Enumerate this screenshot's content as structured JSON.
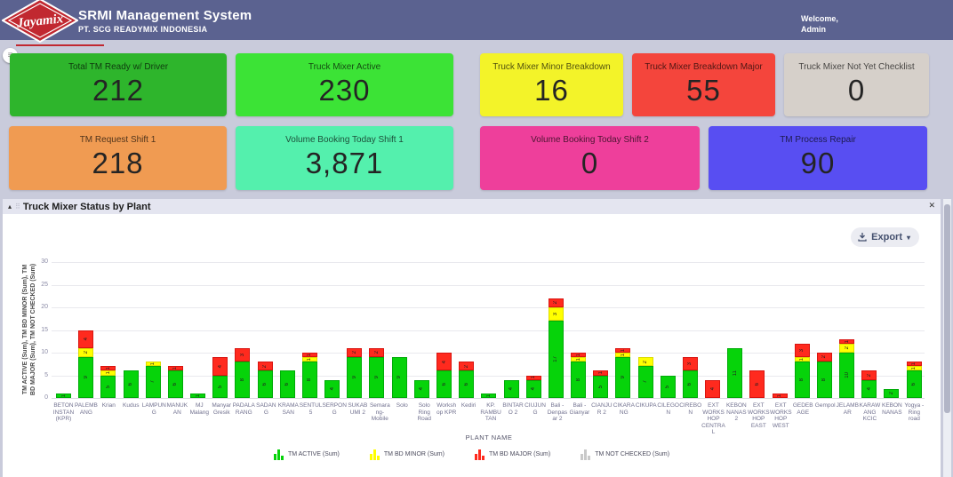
{
  "header": {
    "title": "SRMI Management System",
    "subtitle": "PT. SCG READYMIX INDONESIA",
    "logo_text": "Jayamix",
    "welcome_line1": "Welcome,",
    "welcome_line2": "Admin"
  },
  "icons": {
    "hamburger": "≡",
    "collapse_arrow": "▴",
    "drag_handle": "⠿",
    "close": "✕",
    "export_caret": "▾"
  },
  "cards": {
    "row1": [
      {
        "label": "Total TM Ready w/ Driver",
        "value": "212",
        "bg": "#2eb52c"
      },
      {
        "label": "Truck Mixer Active",
        "value": "230",
        "bg": "#3ce336"
      },
      {
        "label": "Truck Mixer Minor Breakdown",
        "value": "16",
        "bg": "#f3f329"
      },
      {
        "label": "Truck Mixer Breakdown Major",
        "value": "55",
        "bg": "#f4453c"
      },
      {
        "label": "Truck Mixer Not Yet Checklist",
        "value": "0",
        "bg": "#d6d0ca"
      }
    ],
    "row2": [
      {
        "label": "TM Request Shift 1",
        "value": "218",
        "bg": "#f09b52"
      },
      {
        "label": "Volume Booking Today Shift 1",
        "value": "3,871",
        "bg": "#54f0ad"
      },
      {
        "label": "Volume Booking Today Shift 2",
        "value": "0",
        "bg": "#ee3f9b"
      },
      {
        "label": "TM Process Repair",
        "value": "90",
        "bg": "#584ef2"
      }
    ]
  },
  "panel": {
    "title": "Truck Mixer Status by Plant",
    "export_label": "Export"
  },
  "chart_data": {
    "type": "bar",
    "stacked": true,
    "title": "Truck Mixer Status by Plant",
    "xlabel": "PLANT NAME",
    "ylabel": "TM ACTIVE (Sum), TM BD MINOR (Sum), TM\nBD MAJOR (Sum), TM NOT CHECKED (Sum)",
    "ylim": [
      0,
      30
    ],
    "yticks": [
      0,
      5,
      10,
      15,
      20,
      25,
      30
    ],
    "grid": true,
    "legend_position": "bottom",
    "categories": [
      "BETON INSTAN (KPR)",
      "PALEMBANG",
      "Krian",
      "Kudus",
      "LAMPUNG",
      "MANUKAN",
      "MJ Malang",
      "Manyar Gresik",
      "PADALARANG",
      "SADANG",
      "KRAMASAN",
      "SENTUL 5",
      "SERPONG",
      "SUKABUMI 2",
      "Semarang-Mobile",
      "Solo",
      "Solo Ring Road",
      "Workshop KPR",
      "Kediri",
      "KP. RAMBUTAN",
      "BINTARO 2",
      "CIUJUNG",
      "Bali - Denpasar 2",
      "Bali - Gianyar",
      "CIANJUR 2",
      "CIKARANG",
      "CIKUPA",
      "CILEGON",
      "CIREBON",
      "EXT WORKSHOP CENTRAL",
      "KEBON NANAS 2",
      "EXT WORKSHOP EAST",
      "EXT WORKSHOP WEST",
      "GEDEBAGE",
      "Gempol",
      "JELAMBAR",
      "KARAWANG KCIC",
      "KEBON NANAS",
      "Yogya - Ring road"
    ],
    "category_label_lines": [
      "BETON\nINSTAN\n(KPR)",
      "PALEMB\nANG",
      "Krian",
      "Kudus",
      "LAMPUN\nG",
      "MANUK\nAN",
      "MJ\nMalang",
      "Manyar\nGresik",
      "PADALA\nRANG",
      "SADAN\nG",
      "KRAMA\nSAN",
      "SENTUL\n5",
      "SERPON\nG",
      "SUKAB\nUMI 2",
      "Semara\nng-\nMobile",
      "Solo",
      "Solo\nRing\nRoad",
      "Worksh\nop KPR",
      "Kediri",
      "KP.\nRAMBU\nTAN",
      "BINTAR\nO 2",
      "CIUJUN\nG",
      "Bali -\nDenpas\nar 2",
      "Bali -\nGianyar",
      "CIANJU\nR 2",
      "CIKARA\nNG",
      "CIKUPA",
      "CILEGO\nN",
      "CIREBO\nN",
      "EXT\nWORKS\nHOP\nCENTRA\nL",
      "KEBON\nNANAS\n2",
      "EXT\nWORKS\nHOP\nEAST",
      "EXT\nWORKS\nHOP\nWEST",
      "GEDEB\nAGE",
      "Gempol",
      "JELAMB\nAR",
      "KARAW\nANG\nKCIC",
      "KEBON\nNANAS",
      "Yogya -\nRing\nroad"
    ],
    "series": [
      {
        "name": "TM ACTIVE (Sum)",
        "color": "#06d30a",
        "border": "#00ab08",
        "values": [
          1,
          9,
          5,
          6,
          7,
          6,
          1,
          5,
          8,
          6,
          6,
          8,
          4,
          9,
          9,
          9,
          4,
          6,
          6,
          1,
          4,
          4,
          17,
          8,
          5,
          9,
          7,
          5,
          6,
          0,
          11,
          0,
          0,
          8,
          8,
          10,
          4,
          2,
          6
        ]
      },
      {
        "name": "TM BD MINOR (Sum)",
        "color": "#ffff00",
        "border": "#dcdc00",
        "values": [
          0,
          2,
          1,
          0,
          1,
          0,
          0,
          0,
          0,
          0,
          0,
          1,
          0,
          0,
          0,
          0,
          0,
          0,
          0,
          0,
          0,
          0,
          3,
          1,
          0,
          1,
          2,
          0,
          0,
          0,
          0,
          0,
          0,
          1,
          0,
          2,
          0,
          0,
          1
        ]
      },
      {
        "name": "TM BD MAJOR (Sum)",
        "color": "#ff2a1e",
        "border": "#d81410",
        "values": [
          0,
          4,
          1,
          0,
          0,
          1,
          0,
          4,
          3,
          2,
          0,
          1,
          0,
          2,
          2,
          0,
          0,
          4,
          2,
          0,
          0,
          1,
          2,
          1,
          1,
          1,
          0,
          0,
          3,
          4,
          0,
          6,
          1,
          3,
          2,
          1,
          2,
          0,
          1
        ]
      },
      {
        "name": "TM NOT CHECKED (Sum)",
        "color": "#c9c9c9",
        "border": "#ababab",
        "values": [
          0,
          0,
          0,
          0,
          0,
          0,
          0,
          0,
          0,
          0,
          0,
          0,
          0,
          0,
          0,
          0,
          0,
          0,
          0,
          0,
          0,
          0,
          0,
          0,
          0,
          0,
          0,
          0,
          0,
          0,
          0,
          0,
          0,
          0,
          0,
          0,
          0,
          0,
          0
        ]
      }
    ]
  }
}
